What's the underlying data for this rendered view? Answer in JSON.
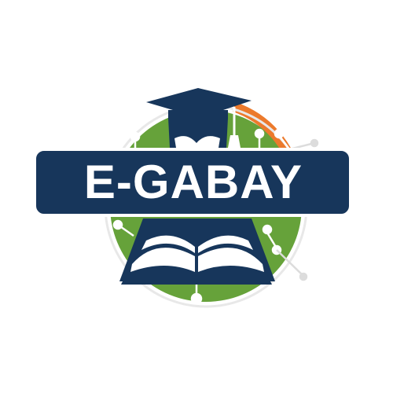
{
  "logo": {
    "wordmark": "E-GABAY",
    "colors": {
      "navy": "#17365b",
      "green": "#66a23a",
      "orange": "#ec7a2c",
      "white": "#ffffff",
      "light_grey": "#dcdcdc"
    },
    "icons": [
      "graduation-cap-icon",
      "open-book-icon",
      "network-nodes-icon"
    ]
  }
}
